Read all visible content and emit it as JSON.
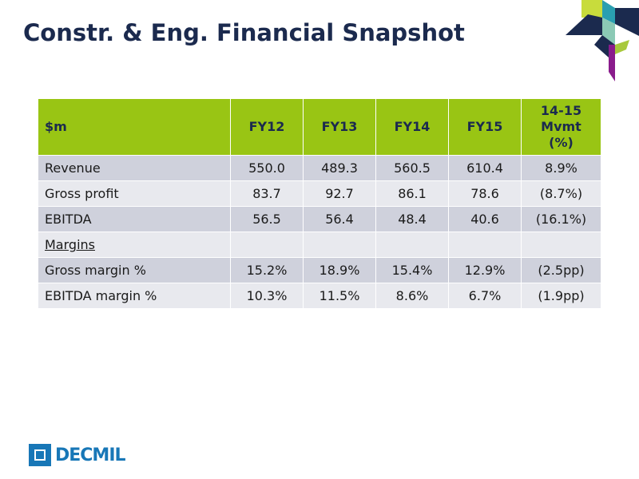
{
  "title": "Constr. & Eng. Financial Snapshot",
  "table": {
    "headers": [
      "$m",
      "FY12",
      "FY13",
      "FY14",
      "FY15",
      "14-15 Mvmt (%)"
    ],
    "rows": [
      {
        "label": "Revenue",
        "values": [
          "550.0",
          "489.3",
          "560.5",
          "610.4",
          "8.9%"
        ]
      },
      {
        "label": "Gross profit",
        "values": [
          "83.7",
          "92.7",
          "86.1",
          "78.6",
          "(8.7%)"
        ]
      },
      {
        "label": "EBITDA",
        "values": [
          "56.5",
          "56.4",
          "48.4",
          "40.6",
          "(16.1%)"
        ]
      },
      {
        "label": "Margins",
        "values": [
          "",
          "",
          "",
          "",
          ""
        ]
      },
      {
        "label": "Gross margin %",
        "values": [
          "15.2%",
          "18.9%",
          "15.4%",
          "12.9%",
          "(2.5pp)"
        ]
      },
      {
        "label": "EBITDA margin %",
        "values": [
          "10.3%",
          "11.5%",
          "8.6%",
          "6.7%",
          "(1.9pp)"
        ]
      }
    ]
  },
  "logo": {
    "text": "DECMIL"
  },
  "colors": {
    "title": "#1b2a4e",
    "header_bg": "#99c514",
    "row_dark": "#cfd1dc",
    "row_light": "#e8e9ee",
    "brand_blue": "#1877b7"
  }
}
